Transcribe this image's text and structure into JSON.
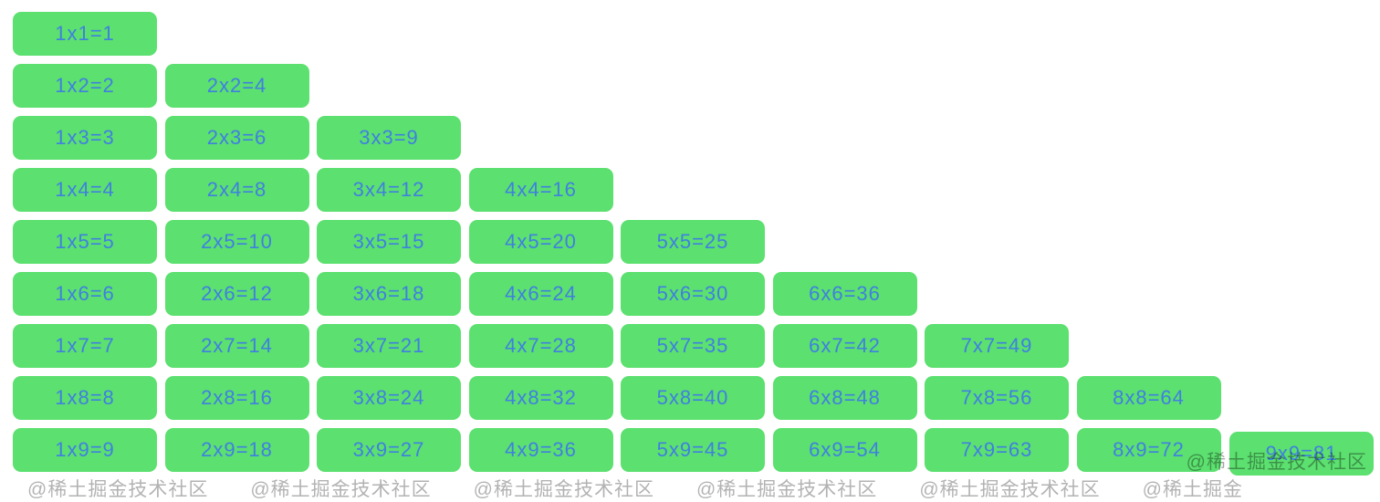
{
  "page": {
    "background": "#ffffff",
    "description": "multiplication-table-grid"
  },
  "table": {
    "cell_color": "#5CE06F",
    "text_color": "#3F80E0",
    "rows": [
      [
        "1x1=1"
      ],
      [
        "1x2=2",
        "2x2=4"
      ],
      [
        "1x3=3",
        "2x3=6",
        "3x3=9"
      ],
      [
        "1x4=4",
        "2x4=8",
        "3x4=12",
        "4x4=16"
      ],
      [
        "1x5=5",
        "2x5=10",
        "3x5=15",
        "4x5=20",
        "5x5=25"
      ],
      [
        "1x6=6",
        "2x6=12",
        "3x6=18",
        "4x6=24",
        "5x6=30",
        "6x6=36"
      ],
      [
        "1x7=7",
        "2x7=14",
        "3x7=21",
        "4x7=28",
        "5x7=35",
        "6x7=42",
        "7x7=49"
      ],
      [
        "1x8=8",
        "2x8=16",
        "3x8=24",
        "4x8=32",
        "5x8=40",
        "6x8=48",
        "7x8=56",
        "8x8=64"
      ],
      [
        "1x9=9",
        "2x9=18",
        "3x9=27",
        "4x9=36",
        "5x9=45",
        "6x9=54",
        "7x9=63",
        "8x9=72",
        "9x9=81"
      ]
    ]
  },
  "watermark": {
    "text": "@稀土掘金技术社区",
    "color": "rgba(0,0,0,0.35)",
    "clipped_row_color": "rgba(0,0,0,0.30)",
    "clipped_tile_count": 6
  }
}
